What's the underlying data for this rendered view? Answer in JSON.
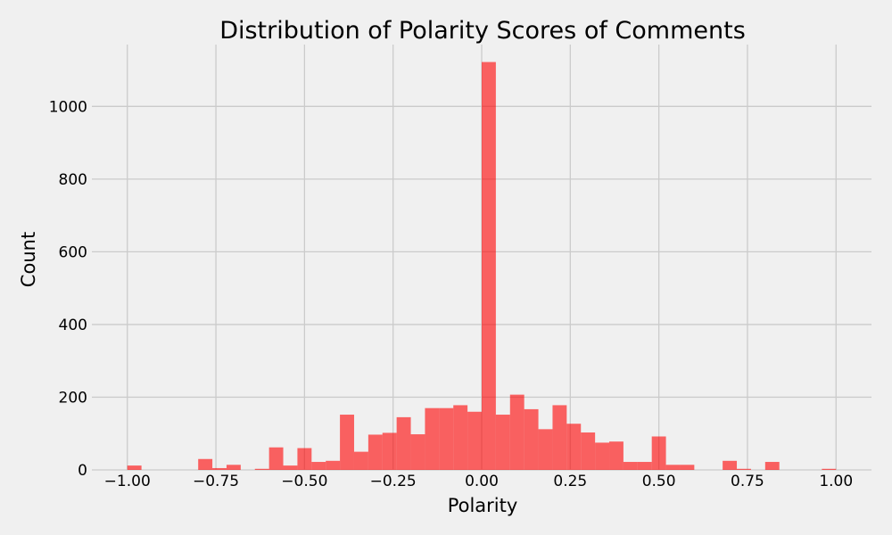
{
  "chart_data": {
    "type": "bar",
    "title": "Distribution of Polarity Scores of Comments",
    "xlabel": "Polarity",
    "ylabel": "Count",
    "xlim": [
      -1.1,
      1.1
    ],
    "ylim": [
      0,
      1170
    ],
    "x_ticks": [
      -1.0,
      -0.75,
      -0.5,
      -0.25,
      0.0,
      0.25,
      0.5,
      0.75,
      1.0
    ],
    "x_tick_labels": [
      "−1.00",
      "−0.75",
      "−0.50",
      "−0.25",
      "0.00",
      "0.25",
      "0.50",
      "0.75",
      "1.00"
    ],
    "y_ticks": [
      0,
      200,
      400,
      600,
      800,
      1000
    ],
    "y_tick_labels": [
      "0",
      "200",
      "400",
      "600",
      "800",
      "1000"
    ],
    "grid": true,
    "bar_color": "#ff0000",
    "bar_opacity": 0.6,
    "bin_width": 0.04,
    "bins": [
      {
        "x0": -1.0,
        "count": 12
      },
      {
        "x0": -0.8,
        "count": 30
      },
      {
        "x0": -0.76,
        "count": 5
      },
      {
        "x0": -0.72,
        "count": 14
      },
      {
        "x0": -0.64,
        "count": 3
      },
      {
        "x0": -0.6,
        "count": 62
      },
      {
        "x0": -0.56,
        "count": 12
      },
      {
        "x0": -0.52,
        "count": 60
      },
      {
        "x0": -0.48,
        "count": 22
      },
      {
        "x0": -0.44,
        "count": 25
      },
      {
        "x0": -0.4,
        "count": 152
      },
      {
        "x0": -0.36,
        "count": 50
      },
      {
        "x0": -0.32,
        "count": 97
      },
      {
        "x0": -0.28,
        "count": 102
      },
      {
        "x0": -0.24,
        "count": 145
      },
      {
        "x0": -0.2,
        "count": 98
      },
      {
        "x0": -0.16,
        "count": 170
      },
      {
        "x0": -0.12,
        "count": 170
      },
      {
        "x0": -0.08,
        "count": 178
      },
      {
        "x0": -0.04,
        "count": 160
      },
      {
        "x0": 0.0,
        "count": 1122
      },
      {
        "x0": 0.04,
        "count": 152
      },
      {
        "x0": 0.08,
        "count": 207
      },
      {
        "x0": 0.12,
        "count": 167
      },
      {
        "x0": 0.16,
        "count": 112
      },
      {
        "x0": 0.2,
        "count": 178
      },
      {
        "x0": 0.24,
        "count": 127
      },
      {
        "x0": 0.28,
        "count": 103
      },
      {
        "x0": 0.32,
        "count": 75
      },
      {
        "x0": 0.36,
        "count": 78
      },
      {
        "x0": 0.4,
        "count": 22
      },
      {
        "x0": 0.44,
        "count": 22
      },
      {
        "x0": 0.48,
        "count": 92
      },
      {
        "x0": 0.52,
        "count": 14
      },
      {
        "x0": 0.56,
        "count": 14
      },
      {
        "x0": 0.68,
        "count": 25
      },
      {
        "x0": 0.72,
        "count": 3
      },
      {
        "x0": 0.8,
        "count": 22
      },
      {
        "x0": 0.96,
        "count": 3
      }
    ]
  }
}
